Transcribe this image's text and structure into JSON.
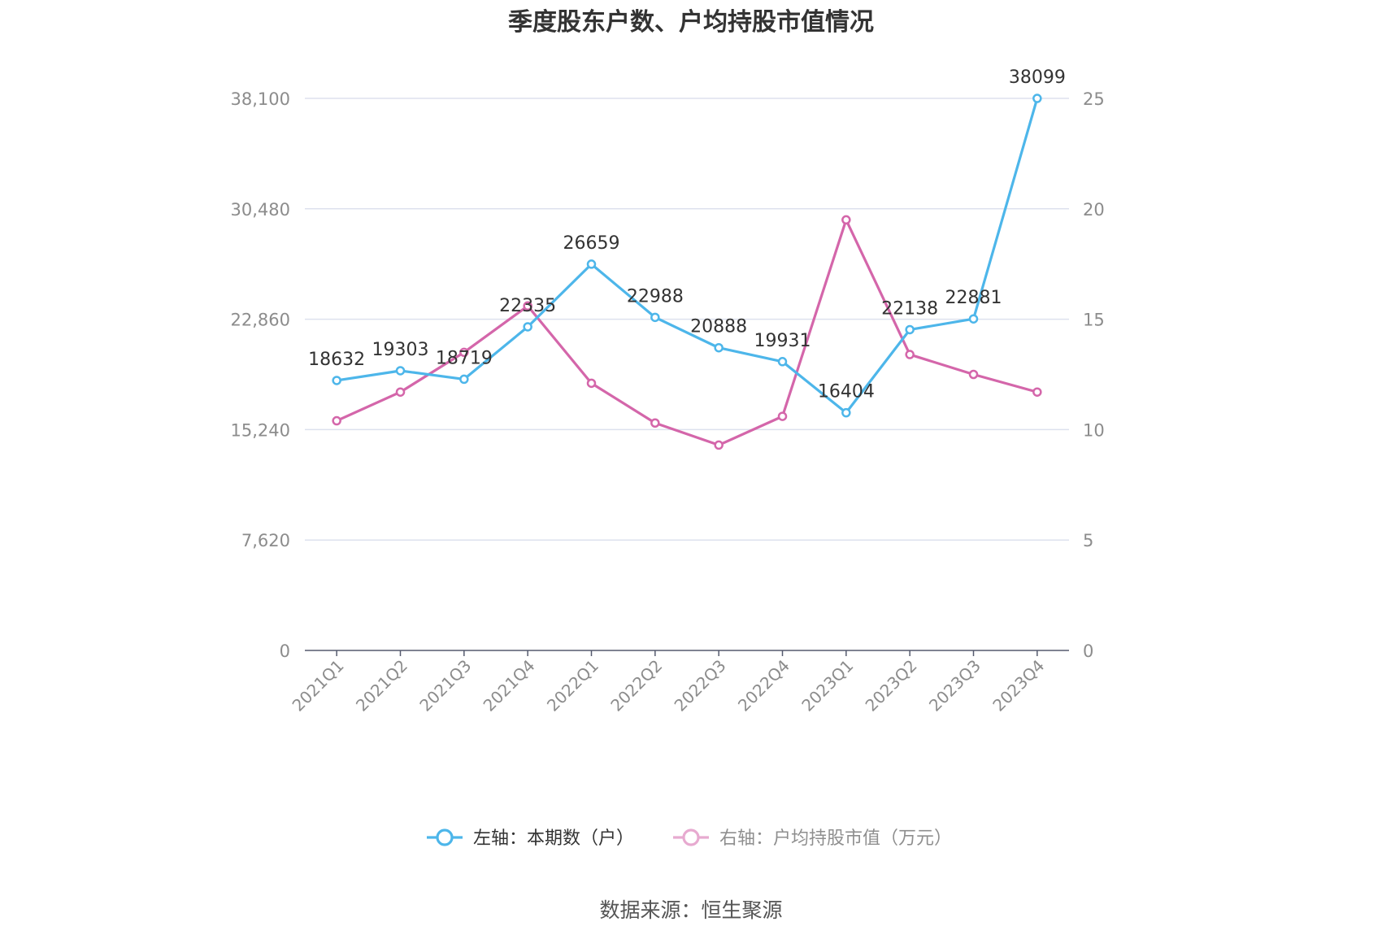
{
  "chart_data": {
    "type": "line",
    "title": "季度股东户数、户均持股市值情况",
    "categories": [
      "2021Q1",
      "2021Q2",
      "2021Q3",
      "2021Q4",
      "2022Q1",
      "2022Q2",
      "2022Q3",
      "2022Q4",
      "2023Q1",
      "2023Q2",
      "2023Q3",
      "2023Q4"
    ],
    "y_left": {
      "ticks": [
        "0",
        "7,620",
        "15,240",
        "22,860",
        "30,480",
        "38,100"
      ],
      "lim": [
        0,
        38100
      ]
    },
    "y_right": {
      "ticks": [
        "0",
        "5",
        "10",
        "15",
        "20",
        "25"
      ],
      "lim": [
        0,
        25
      ]
    },
    "grid": true,
    "legend_position": "bottom",
    "series": [
      {
        "name": "左轴：本期数（户）",
        "axis": "left",
        "color": "#4db6ea",
        "values": [
          18632,
          19303,
          18719,
          22335,
          26659,
          22988,
          20888,
          19931,
          16404,
          22138,
          22881,
          38099
        ],
        "labels": [
          "18632",
          "19303",
          "18719",
          "22335",
          "26659",
          "22988",
          "20888",
          "19931",
          "16404",
          "22138",
          "22881",
          "38099"
        ]
      },
      {
        "name": "右轴：户均持股市值（万元）",
        "axis": "right",
        "color": "#d466aa",
        "values": [
          10.4,
          11.7,
          13.5,
          15.6,
          12.1,
          10.3,
          9.3,
          10.6,
          19.5,
          13.4,
          12.5,
          11.7
        ]
      }
    ]
  },
  "source": "数据来源：恒生聚源"
}
